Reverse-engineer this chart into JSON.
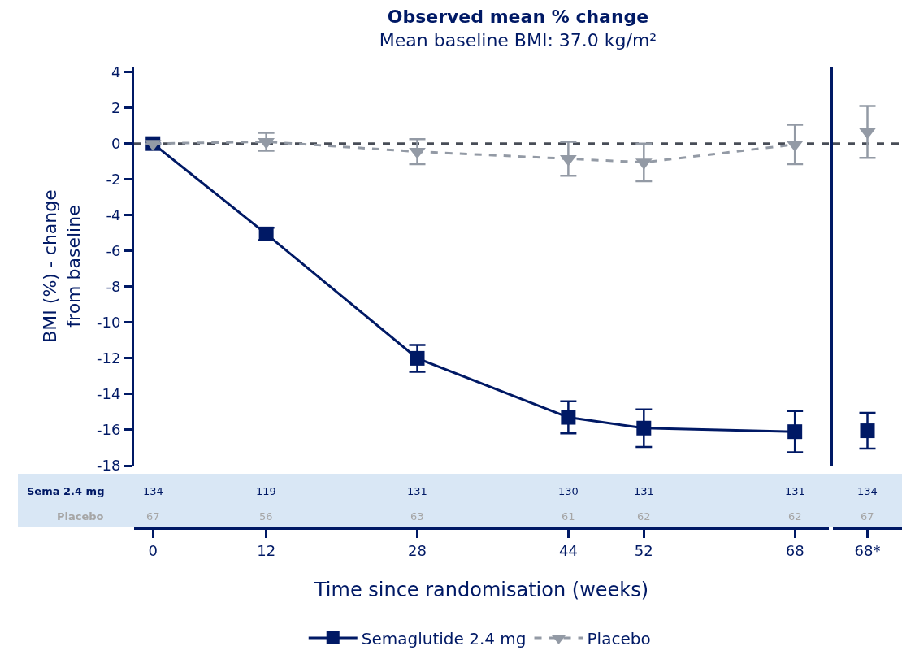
{
  "chart_data": [
    {
      "type": "line",
      "title": "Observed mean % change",
      "subtitle": "Mean baseline BMI: 37.0 kg/m²",
      "xlabel": "Time since randomisation (weeks)",
      "ylabel": "BMI (%) - change\nfrom baseline",
      "xlim": [
        -2,
        71.6
      ],
      "xticks": [
        0,
        12,
        28,
        44,
        52,
        68
      ],
      "ylim": [
        -18,
        4.3
      ],
      "yticks": [
        4,
        2,
        0,
        -2,
        -4,
        -6,
        -8,
        -10,
        -12,
        -14,
        -16,
        -18
      ],
      "series": [
        {
          "name": "Semaglutide 2.4 mg",
          "color": "#001965",
          "marker": "square",
          "line_style": "solid",
          "x": [
            0,
            12,
            28,
            44,
            52,
            68
          ],
          "values": [
            0,
            -5.05,
            -12,
            -15.3,
            -15.9,
            -16.1
          ],
          "errors": [
            null,
            0.35,
            0.75,
            0.9,
            1.05,
            1.15
          ]
        },
        {
          "name": "Placebo",
          "color": "#939aa5",
          "marker": "triangle",
          "line_style": "dashed",
          "x": [
            0,
            12,
            28,
            44,
            52,
            68
          ],
          "values": [
            0,
            0.1,
            -0.45,
            -0.85,
            -1.05,
            -0.05
          ],
          "errors": [
            null,
            0.5,
            0.7,
            0.95,
            1.05,
            1.1
          ]
        }
      ],
      "ref_lines": [
        {
          "axis": "y",
          "value": 0,
          "color": "#484d57",
          "line_style": "dashed"
        }
      ],
      "annotations": [
        "Sema 2.4 mg",
        "Placebo",
        "134",
        "119",
        "131",
        "130",
        "131",
        "131",
        "67",
        "56",
        "63",
        "61",
        "62",
        "62"
      ],
      "legend": "bottom",
      "grid": false
    },
    {
      "type": "scatter",
      "categories": [
        "68*"
      ],
      "ylim": [
        -18,
        4.3
      ],
      "tick_labels": "x",
      "series": [
        {
          "color": "#001965",
          "marker": "square",
          "values": [
            -16.05
          ],
          "errors": [
            1.0
          ]
        },
        {
          "color": "#939aa5",
          "marker": "triangle",
          "values": [
            0.65
          ],
          "errors": [
            1.45
          ]
        }
      ],
      "ref_lines": [
        {
          "axis": "y",
          "value": 0,
          "color": "#484d57",
          "line_style": "dashed"
        }
      ],
      "annotations": [
        "134",
        "67"
      ],
      "grid": false
    }
  ]
}
